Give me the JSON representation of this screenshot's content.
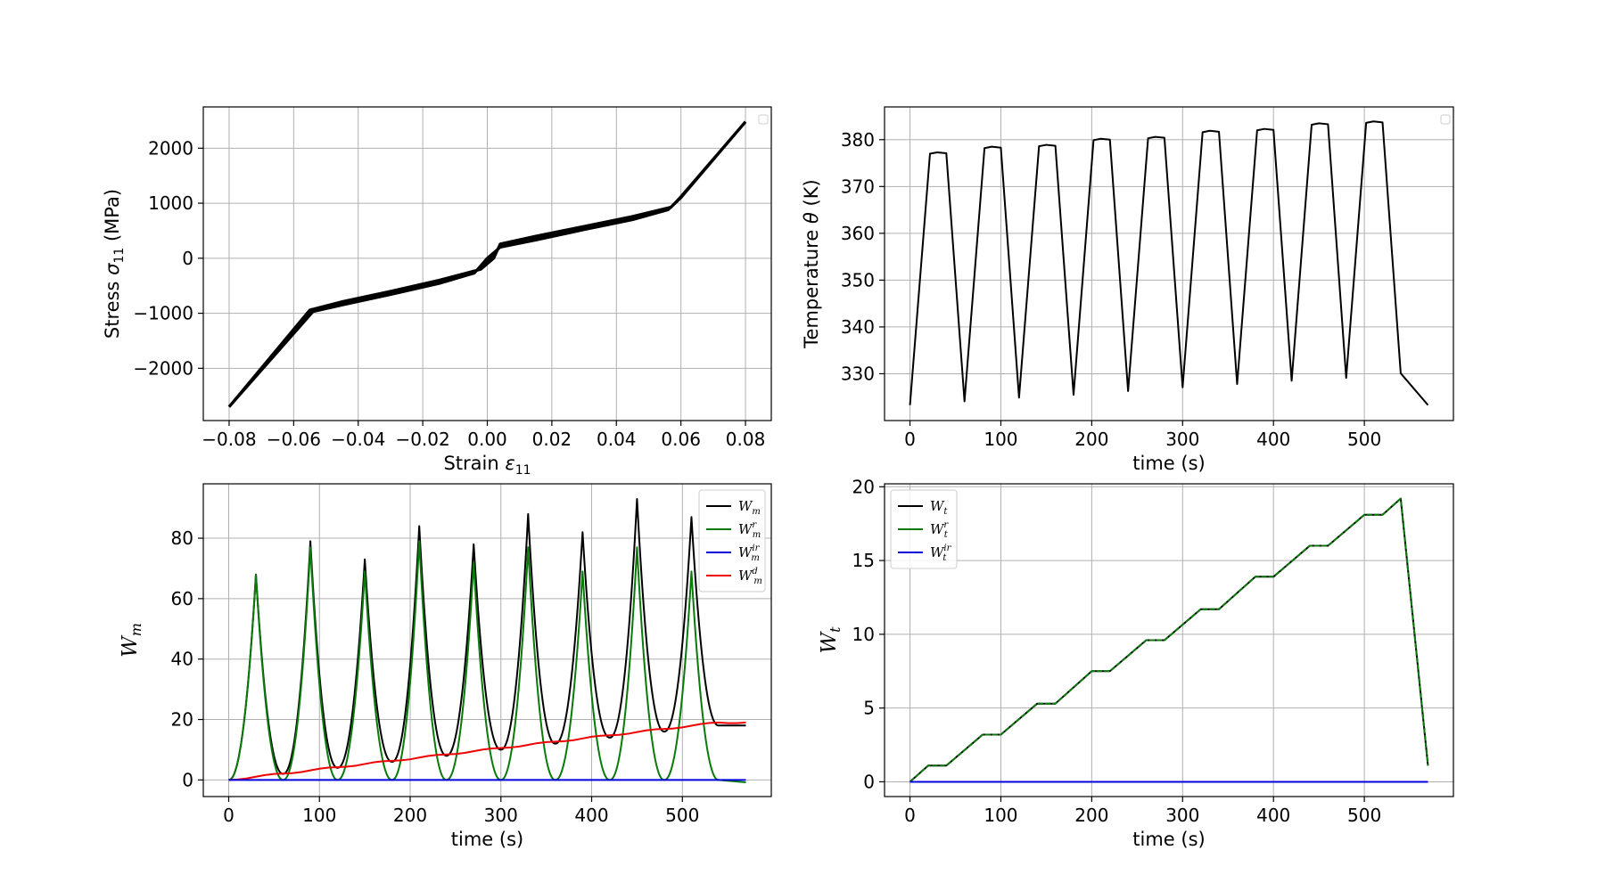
{
  "chart_data": [
    {
      "id": "stress-strain",
      "type": "line",
      "title": "",
      "xlabel": "Strain ",
      "xlabel_symbol": "ε",
      "xlabel_sub": "11",
      "ylabel": "Stress ",
      "ylabel_symbol": "σ",
      "ylabel_sub": "11",
      "ylabel_unit": " (MPa)",
      "xlim": [
        -0.088,
        0.088
      ],
      "ylim": [
        -2950,
        2750
      ],
      "xticks": [
        -0.08,
        -0.06,
        -0.04,
        -0.02,
        0.0,
        0.02,
        0.04,
        0.06,
        0.08
      ],
      "xtick_labels": [
        "−0.08",
        "−0.06",
        "−0.04",
        "−0.02",
        "0.00",
        "0.02",
        "0.04",
        "0.06",
        "0.08"
      ],
      "yticks": [
        -2000,
        -1000,
        0,
        1000,
        2000
      ],
      "ytick_labels": [
        "−2000",
        "−1000",
        "0",
        "1000",
        "2000"
      ],
      "grid": true,
      "legend": "top-right-empty",
      "series": [
        {
          "color": "#000000",
          "width": 3.2,
          "x": [
            -0.08,
            -0.054,
            -0.045,
            -0.03,
            -0.015,
            -0.004,
            0.0,
            0.004,
            0.015,
            0.03,
            0.045,
            0.056,
            0.06,
            0.08
          ],
          "y": [
            -2700,
            -970,
            -850,
            -660,
            -460,
            -270,
            0,
            200,
            330,
            520,
            700,
            880,
            1100,
            2480
          ]
        },
        {
          "color": "#000000",
          "width": 3.2,
          "x": [
            -0.08,
            -0.055,
            -0.045,
            -0.03,
            -0.015,
            -0.002,
            0.002,
            0.004,
            0.015,
            0.03,
            0.045,
            0.057,
            0.06,
            0.08
          ],
          "y": [
            -2700,
            -940,
            -790,
            -600,
            -400,
            -200,
            0,
            260,
            400,
            580,
            760,
            930,
            1120,
            2480
          ]
        }
      ]
    },
    {
      "id": "temperature",
      "type": "line",
      "title": "",
      "xlabel": "time (s)",
      "ylabel": "Temperature ",
      "ylabel_symbol": "θ",
      "ylabel_unit": " (K)",
      "xlim": [
        -28,
        598
      ],
      "ylim": [
        320,
        387
      ],
      "xticks": [
        0,
        100,
        200,
        300,
        400,
        500
      ],
      "xtick_labels": [
        "0",
        "100",
        "200",
        "300",
        "400",
        "500"
      ],
      "yticks": [
        330,
        340,
        350,
        360,
        370,
        380
      ],
      "ytick_labels": [
        "330",
        "340",
        "350",
        "360",
        "370",
        "380"
      ],
      "grid": true,
      "legend": "top-right-empty",
      "series": [
        {
          "color": "#000000",
          "width": 2,
          "x": [
            0,
            22,
            30,
            40,
            60,
            82,
            90,
            100,
            120,
            142,
            150,
            160,
            180,
            202,
            210,
            220,
            240,
            262,
            270,
            280,
            300,
            322,
            330,
            340,
            360,
            382,
            390,
            400,
            420,
            442,
            450,
            460,
            480,
            502,
            510,
            520,
            540,
            570
          ],
          "y": [
            323.3,
            377.0,
            377.3,
            377.1,
            324.1,
            378.2,
            378.5,
            378.3,
            324.9,
            378.6,
            378.9,
            378.7,
            325.5,
            379.9,
            380.2,
            380.0,
            326.3,
            380.3,
            380.6,
            380.4,
            327.1,
            381.6,
            381.9,
            381.7,
            327.8,
            382.0,
            382.3,
            382.1,
            328.5,
            383.2,
            383.5,
            383.3,
            329.1,
            383.6,
            383.9,
            383.7,
            330.1,
            323.3
          ]
        }
      ]
    },
    {
      "id": "wm",
      "type": "line",
      "title": "",
      "xlabel": "time (s)",
      "ylabel": "W",
      "ylabel_sub": "m",
      "xlim": [
        -28,
        598
      ],
      "ylim": [
        -5.5,
        98
      ],
      "xticks": [
        0,
        100,
        200,
        300,
        400,
        500
      ],
      "xtick_labels": [
        "0",
        "100",
        "200",
        "300",
        "400",
        "500"
      ],
      "yticks": [
        0,
        20,
        40,
        60,
        80
      ],
      "ytick_labels": [
        "0",
        "20",
        "40",
        "60",
        "80"
      ],
      "grid": true,
      "legend": "top-right",
      "peaks_total": [
        68,
        79,
        73,
        84,
        78,
        88,
        82,
        93,
        87
      ],
      "valleys_total": [
        2,
        4,
        6,
        8,
        10,
        12,
        14,
        16,
        18
      ],
      "peaks_reversible": [
        68,
        77,
        69,
        79,
        72,
        77,
        69,
        77,
        69
      ],
      "dissipated_end": 19,
      "series": [
        {
          "name": "W",
          "sub": "m",
          "sup": "",
          "color": "#000000"
        },
        {
          "name": "W",
          "sub": "m",
          "sup": "r",
          "color": "#0a7a0a"
        },
        {
          "name": "W",
          "sub": "m",
          "sup": "ir",
          "color": "#0000dd"
        },
        {
          "name": "W",
          "sub": "m",
          "sup": "d",
          "color": "#ee0000"
        }
      ]
    },
    {
      "id": "wt",
      "type": "line",
      "title": "",
      "xlabel": "time (s)",
      "ylabel": "W",
      "ylabel_sub": "t",
      "xlim": [
        -28,
        598
      ],
      "ylim": [
        -1.0,
        20.2
      ],
      "xticks": [
        0,
        100,
        200,
        300,
        400,
        500
      ],
      "xtick_labels": [
        "0",
        "100",
        "200",
        "300",
        "400",
        "500"
      ],
      "yticks": [
        0,
        5,
        10,
        15,
        20
      ],
      "ytick_labels": [
        "0",
        "5",
        "10",
        "15",
        "20"
      ],
      "grid": true,
      "legend": "top-left",
      "series": [
        {
          "name": "W",
          "sub": "t",
          "sup": "",
          "color": "#000000",
          "x": [
            0,
            20,
            40,
            80,
            100,
            140,
            160,
            200,
            220,
            260,
            280,
            320,
            340,
            380,
            400,
            440,
            460,
            500,
            520,
            540,
            570
          ],
          "y": [
            0,
            1.1,
            1.1,
            3.2,
            3.2,
            5.3,
            5.3,
            7.5,
            7.5,
            9.6,
            9.6,
            11.7,
            11.7,
            13.9,
            13.9,
            16.0,
            16.0,
            18.1,
            18.1,
            19.2,
            1.1
          ]
        },
        {
          "name": "W",
          "sub": "t",
          "sup": "r",
          "color": "#0a7a0a",
          "x": [
            0,
            20,
            40,
            80,
            100,
            140,
            160,
            200,
            220,
            260,
            280,
            320,
            340,
            380,
            400,
            440,
            460,
            500,
            520,
            540,
            570
          ],
          "y": [
            0,
            1.1,
            1.1,
            3.2,
            3.2,
            5.3,
            5.3,
            7.5,
            7.5,
            9.6,
            9.6,
            11.7,
            11.7,
            13.9,
            13.9,
            16.0,
            16.0,
            18.1,
            18.1,
            19.2,
            1.1
          ]
        },
        {
          "name": "W",
          "sub": "t",
          "sup": "ir",
          "color": "#0000dd",
          "x": [
            0,
            570
          ],
          "y": [
            0,
            0
          ]
        }
      ]
    }
  ]
}
